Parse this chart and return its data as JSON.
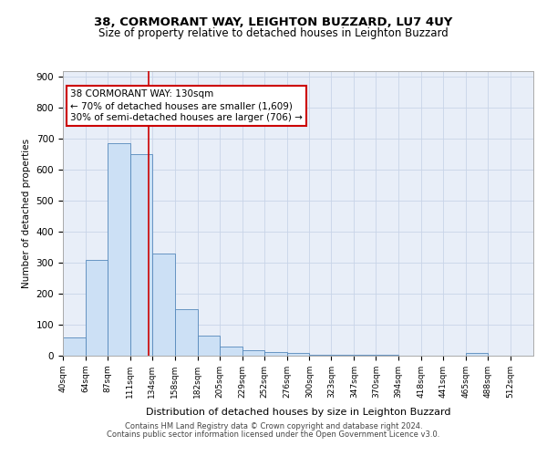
{
  "title1": "38, CORMORANT WAY, LEIGHTON BUZZARD, LU7 4UY",
  "title2": "Size of property relative to detached houses in Leighton Buzzard",
  "xlabel": "Distribution of detached houses by size in Leighton Buzzard",
  "ylabel": "Number of detached properties",
  "bar_values": [
    60,
    310,
    685,
    650,
    330,
    150,
    65,
    30,
    18,
    12,
    8,
    4,
    3,
    2,
    2,
    1,
    1,
    0,
    8,
    0,
    0
  ],
  "bin_labels": [
    "40sqm",
    "64sqm",
    "87sqm",
    "111sqm",
    "134sqm",
    "158sqm",
    "182sqm",
    "205sqm",
    "229sqm",
    "252sqm",
    "276sqm",
    "300sqm",
    "323sqm",
    "347sqm",
    "370sqm",
    "394sqm",
    "418sqm",
    "441sqm",
    "465sqm",
    "488sqm",
    "512sqm"
  ],
  "bin_edges": [
    40,
    64,
    87,
    111,
    134,
    158,
    182,
    205,
    229,
    252,
    276,
    300,
    323,
    347,
    370,
    394,
    418,
    441,
    465,
    488,
    512
  ],
  "bar_color": "#cce0f5",
  "bar_edge_color": "#5588bb",
  "red_line_x": 130,
  "ylim": [
    0,
    920
  ],
  "yticks": [
    0,
    100,
    200,
    300,
    400,
    500,
    600,
    700,
    800,
    900
  ],
  "annotation_line1": "38 CORMORANT WAY: 130sqm",
  "annotation_line2": "← 70% of detached houses are smaller (1,609)",
  "annotation_line3": "30% of semi-detached houses are larger (706) →",
  "footer1": "Contains HM Land Registry data © Crown copyright and database right 2024.",
  "footer2": "Contains public sector information licensed under the Open Government Licence v3.0.",
  "grid_color": "#c8d4e8",
  "bg_color": "#e8eef8",
  "title1_fontsize": 9.5,
  "title2_fontsize": 8.5,
  "ylabel_fontsize": 7.5,
  "xlabel_fontsize": 8.0,
  "tick_fontsize": 7.5,
  "xtick_fontsize": 6.5,
  "footer_fontsize": 6.0,
  "ann_fontsize": 7.5
}
